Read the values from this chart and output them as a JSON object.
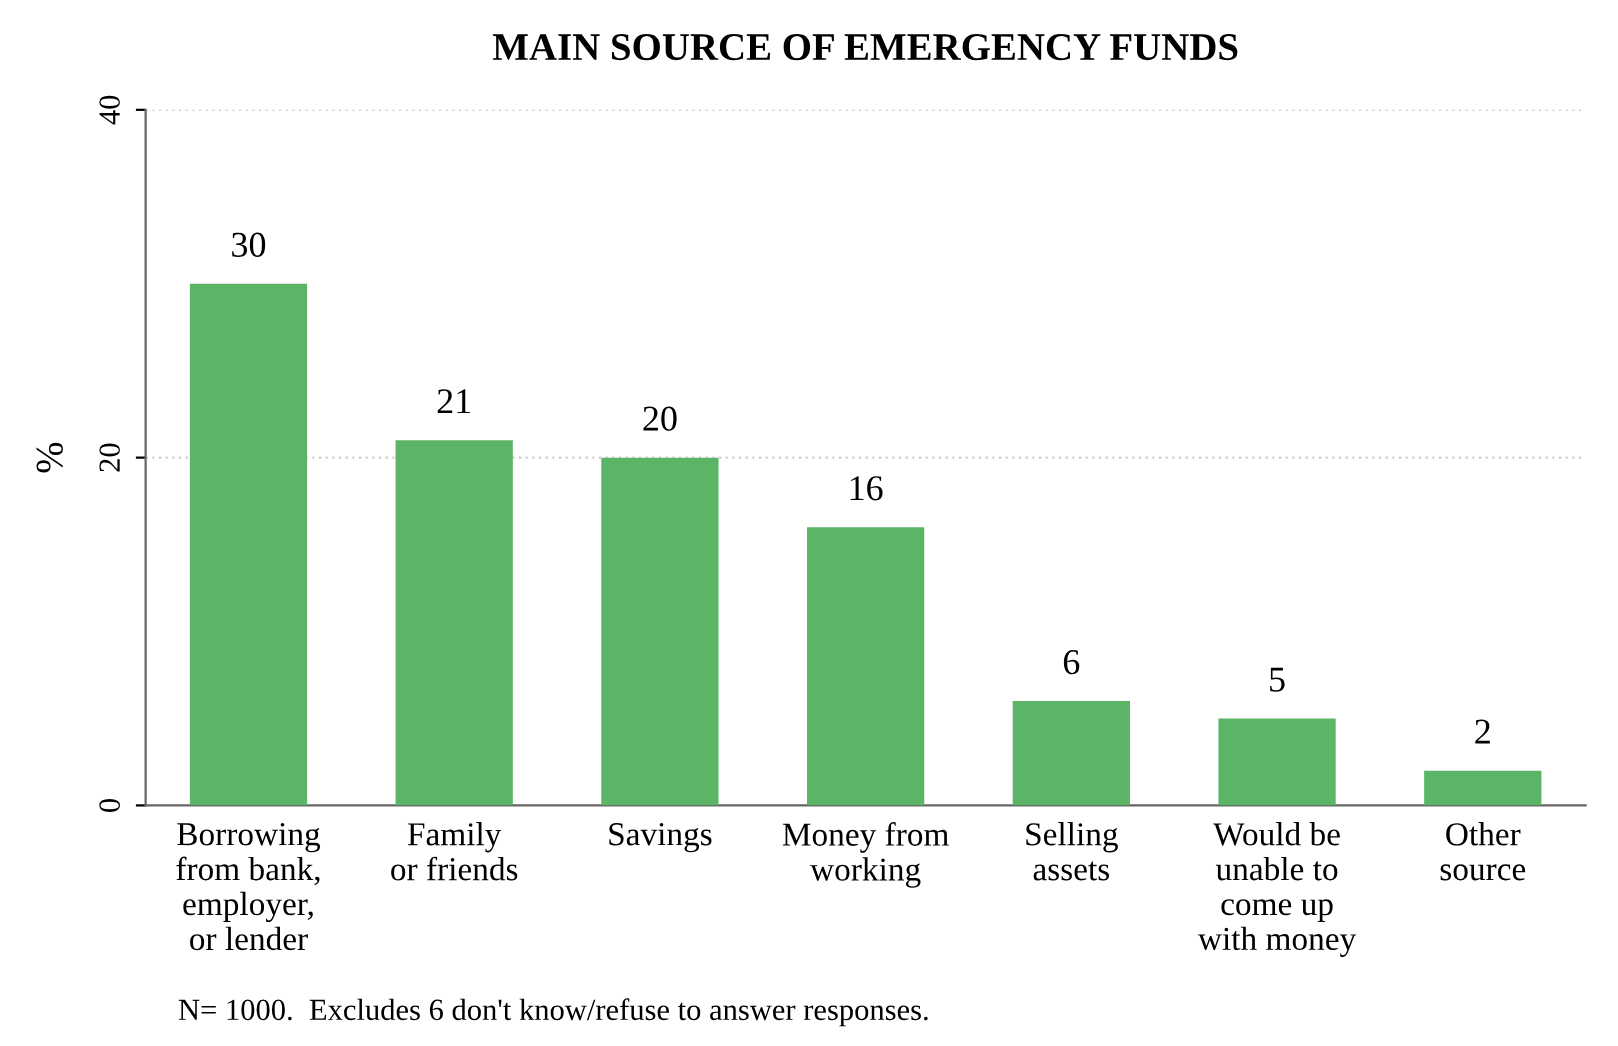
{
  "chart_data": {
    "type": "bar",
    "title": "MAIN SOURCE OF EMERGENCY FUNDS",
    "ylabel": "%",
    "categories": [
      "Borrowing\nfrom bank,\nemployer,\nor lender",
      "Family\nor friends",
      "Savings",
      "Money from\nworking",
      "Selling\nassets",
      "Would be\nunable to\ncome up\nwith money",
      "Other\nsource"
    ],
    "values": [
      30,
      21,
      20,
      16,
      6,
      5,
      2
    ],
    "color": "#5cb567",
    "ylim": [
      0,
      40
    ],
    "yticks": [
      0,
      20,
      40
    ],
    "grid": "y",
    "data_labels": true,
    "annotations": [
      "N= 1000.  Excludes 6 don't know/refuse to answer responses."
    ]
  }
}
